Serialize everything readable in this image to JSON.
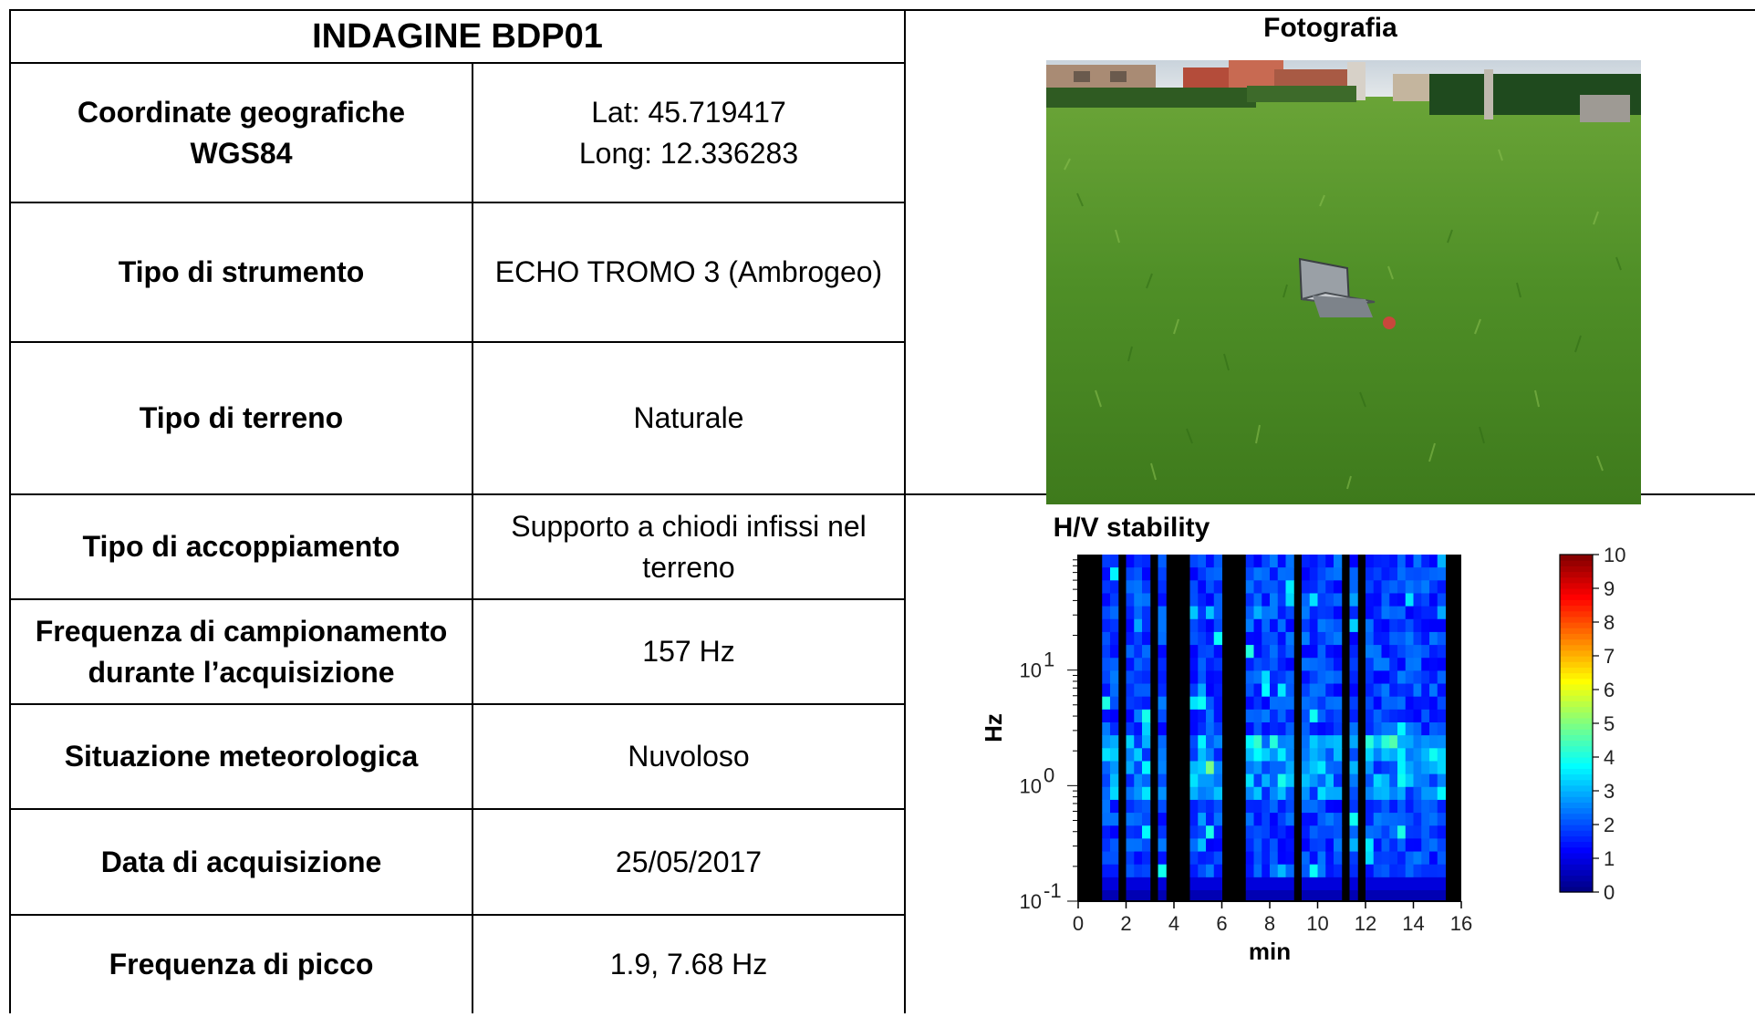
{
  "title": "INDAGINE BDP01",
  "rows": [
    {
      "label": "Coordinate geografiche\nWGS84",
      "value": "Lat: 45.719417\nLong: 12.336283"
    },
    {
      "label": "Tipo di strumento",
      "value": "ECHO TROMO 3 (Ambrogeo)"
    },
    {
      "label": "Tipo di terreno",
      "value": "Naturale"
    },
    {
      "label": "Tipo di accoppiamento",
      "value": "Supporto a chiodi infissi nel\nterreno"
    },
    {
      "label": "Frequenza di campionamento\ndurante l’acquisizione",
      "value": "157 Hz"
    },
    {
      "label": "Situazione meteorologica",
      "value": "Nuvoloso"
    },
    {
      "label": "Data di acquisizione",
      "value": "25/05/2017"
    },
    {
      "label": "Frequenza di picco",
      "value": "1.9, 7.68 Hz"
    }
  ],
  "photo": {
    "heading": "Fotografia"
  },
  "chart_data": {
    "type": "heatmap",
    "title": "H/V stability",
    "xlabel": "min",
    "ylabel": "Hz",
    "xlim": [
      0,
      16
    ],
    "ylim": [
      0.1,
      100
    ],
    "y_scale": "log",
    "x_ticks": [
      "0",
      "2",
      "4",
      "6",
      "8",
      "10",
      "12",
      "14",
      "16"
    ],
    "y_ticks": [
      {
        "base": "10",
        "exp": "-1"
      },
      {
        "base": "10",
        "exp": "0"
      },
      {
        "base": "10",
        "exp": "1"
      }
    ],
    "colorbar": {
      "range": [
        0,
        10
      ],
      "ticks": [
        "0",
        "1",
        "2",
        "3",
        "4",
        "5",
        "6",
        "7",
        "8",
        "9",
        "10"
      ]
    },
    "masked_windows_min": [
      [
        0,
        0.95
      ],
      [
        1.7,
        2.0
      ],
      [
        2.9,
        3.3
      ],
      [
        3.6,
        4.7
      ],
      [
        6.0,
        7.0
      ],
      [
        9.0,
        9.3
      ],
      [
        10.9,
        11.3
      ],
      [
        11.6,
        11.9
      ],
      [
        15.3,
        16
      ]
    ],
    "colors": {
      "masked": "#000000",
      "base": "#1a1adc"
    }
  }
}
